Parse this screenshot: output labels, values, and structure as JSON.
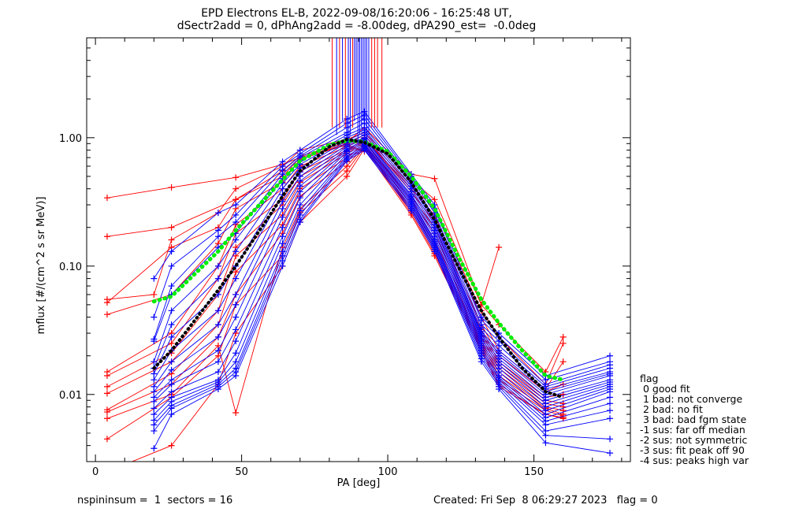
{
  "title": "EPD Electrons EL-B, 2022-09-08/16:20:06 - 16:25:48 UT,",
  "subtitle": "dSectr2add = 0, dPhAng2add = -8.00deg, dPA290_est=  -0.0deg",
  "footer": {
    "left": "nspininsum =  1  sectors = 16",
    "right": "Created: Fri Sep  8 06:29:27 2023   flag = 0"
  },
  "legend": {
    "title": "flag",
    "items": [
      " 0 good fit",
      " 1 bad: not converge",
      " 2 bad: no fit",
      " 3 bad: bad fgm state",
      "-1 sus: far off median",
      "-2 sus: not symmetric",
      "-3 sus: fit peak off 90",
      "-4 sus: peaks high var"
    ]
  },
  "colors": {
    "red": "#ff0000",
    "blue": "#0000ff",
    "green": "#00ee00",
    "black": "#000000"
  },
  "chart_data": {
    "type": "line",
    "xlabel": "PA [deg]",
    "ylabel": "mflux [#/(cm^2 s sr MeV)]",
    "xlim": [
      -3,
      183
    ],
    "ylim": [
      0.003,
      6.0
    ],
    "yscale": "log",
    "xticks": [
      0,
      50,
      100,
      150
    ],
    "yticks": [
      0.01,
      0.1,
      1.0
    ],
    "ytick_labels": [
      "0.01",
      "0.10",
      "1.00"
    ],
    "pa": [
      4,
      20,
      26,
      42,
      48,
      64,
      70,
      86,
      92,
      108,
      116,
      132,
      138,
      154,
      160,
      176
    ],
    "median_fit": {
      "color": "green",
      "x": [
        20,
        26,
        42,
        48,
        64,
        70,
        80,
        86,
        92,
        100,
        108,
        116,
        124,
        132,
        138,
        146,
        154,
        160
      ],
      "y": [
        0.053,
        0.058,
        0.13,
        0.19,
        0.47,
        0.66,
        0.88,
        0.95,
        0.93,
        0.78,
        0.5,
        0.28,
        0.12,
        0.055,
        0.036,
        0.022,
        0.014,
        0.013
      ]
    },
    "median_data": {
      "color": "black",
      "x": [
        20,
        26,
        42,
        48,
        64,
        70,
        80,
        86,
        92,
        100,
        108,
        116,
        124,
        132,
        138,
        146,
        154,
        160
      ],
      "y": [
        0.016,
        0.022,
        0.065,
        0.1,
        0.35,
        0.55,
        0.85,
        0.97,
        0.92,
        0.75,
        0.45,
        0.23,
        0.1,
        0.045,
        0.028,
        0.016,
        0.0105,
        0.0095
      ]
    },
    "series": [
      {
        "color": "red",
        "values": [
          0.34,
          null,
          0.41,
          null,
          0.49,
          0.62,
          0.7,
          0.88,
          0.78,
          null,
          null,
          null,
          null,
          null,
          null,
          null
        ]
      },
      {
        "color": "red",
        "values": [
          0.17,
          null,
          0.2,
          null,
          0.33,
          0.55,
          0.72,
          0.92,
          1.2,
          0.52,
          0.48,
          0.05,
          0.14,
          null,
          null,
          null
        ]
      },
      {
        "color": "red",
        "values": [
          0.055,
          0.06,
          0.16,
          0.26,
          0.4,
          0.6,
          0.8,
          0.97,
          1.1,
          0.47,
          0.33,
          0.05,
          0.035,
          0.015,
          0.028,
          null
        ]
      },
      {
        "color": "red",
        "values": [
          0.052,
          null,
          0.14,
          0.2,
          0.33,
          0.5,
          0.7,
          0.9,
          1.05,
          0.42,
          0.28,
          0.045,
          0.028,
          0.012,
          0.025,
          null
        ]
      },
      {
        "color": "red",
        "values": [
          0.042,
          null,
          0.06,
          0.15,
          0.28,
          0.45,
          0.68,
          0.88,
          1.0,
          0.4,
          0.25,
          0.04,
          0.022,
          0.011,
          0.018,
          null
        ]
      },
      {
        "color": "red",
        "values": [
          0.015,
          null,
          0.03,
          0.1,
          0.21,
          0.4,
          0.6,
          0.85,
          1.0,
          0.38,
          0.22,
          0.035,
          0.02,
          0.0105,
          0.012,
          null
        ]
      },
      {
        "color": "red",
        "values": [
          0.014,
          null,
          0.025,
          0.08,
          0.18,
          0.33,
          0.55,
          0.8,
          0.98,
          0.35,
          0.2,
          0.032,
          0.018,
          0.0095,
          0.01,
          null
        ]
      },
      {
        "color": "red",
        "values": [
          0.0115,
          null,
          0.021,
          0.06,
          0.14,
          0.3,
          0.5,
          0.78,
          0.95,
          0.33,
          0.18,
          0.03,
          0.017,
          0.009,
          0.0085,
          null
        ]
      },
      {
        "color": "red",
        "values": [
          0.0102,
          null,
          0.018,
          0.045,
          0.12,
          0.25,
          0.45,
          0.75,
          0.93,
          0.32,
          0.16,
          0.028,
          0.016,
          0.0085,
          0.008,
          null
        ]
      },
      {
        "color": "red",
        "values": [
          0.0076,
          null,
          0.0145,
          0.035,
          0.09,
          0.21,
          0.4,
          0.7,
          0.9,
          0.3,
          0.15,
          0.026,
          0.015,
          0.008,
          0.0075,
          null
        ]
      },
      {
        "color": "red",
        "values": [
          0.0073,
          null,
          0.012,
          0.028,
          0.06,
          0.18,
          0.35,
          0.65,
          0.88,
          0.28,
          0.14,
          0.025,
          0.014,
          0.0078,
          0.007,
          null
        ]
      },
      {
        "color": "red",
        "values": [
          0.0065,
          null,
          0.01,
          0.024,
          0.0072,
          0.14,
          0.28,
          0.6,
          0.86,
          0.27,
          0.13,
          0.024,
          0.013,
          0.0075,
          0.0068,
          null
        ]
      },
      {
        "color": "red",
        "values": [
          0.0045,
          null,
          0.0095,
          0.02,
          0.05,
          0.12,
          0.26,
          0.55,
          0.85,
          0.26,
          0.125,
          0.023,
          0.012,
          0.007,
          0.0066,
          null
        ]
      },
      {
        "color": "red",
        "values": [
          0.0025,
          null,
          0.004,
          0.012,
          0.03,
          0.1,
          0.22,
          0.5,
          0.82,
          0.25,
          0.12,
          0.022,
          0.0115,
          0.007,
          0.0065,
          null
        ]
      },
      {
        "color": "blue",
        "values": [
          null,
          0.08,
          0.13,
          0.26,
          0.3,
          0.65,
          0.8,
          1.4,
          1.6,
          0.52,
          0.3,
          0.04,
          0.03,
          0.014,
          null,
          0.02
        ]
      },
      {
        "color": "blue",
        "values": [
          null,
          0.04,
          0.1,
          0.19,
          0.25,
          0.6,
          0.75,
          1.3,
          1.5,
          0.5,
          0.28,
          0.038,
          0.028,
          0.013,
          null,
          0.018
        ]
      },
      {
        "color": "blue",
        "values": [
          null,
          0.027,
          0.07,
          0.17,
          0.22,
          0.56,
          0.72,
          1.2,
          1.4,
          0.48,
          0.26,
          0.035,
          0.026,
          0.012,
          null,
          0.017
        ]
      },
      {
        "color": "blue",
        "values": [
          null,
          0.026,
          0.06,
          0.14,
          0.18,
          0.52,
          0.7,
          1.1,
          1.3,
          0.46,
          0.24,
          0.033,
          0.024,
          0.0115,
          null,
          0.016
        ]
      },
      {
        "color": "blue",
        "values": [
          null,
          0.018,
          0.045,
          0.1,
          0.16,
          0.48,
          0.66,
          1.05,
          1.2,
          0.44,
          0.23,
          0.031,
          0.022,
          0.011,
          null,
          0.015
        ]
      },
      {
        "color": "blue",
        "values": [
          null,
          0.016,
          0.035,
          0.08,
          0.13,
          0.44,
          0.62,
          1.0,
          1.15,
          0.42,
          0.22,
          0.03,
          0.021,
          0.0105,
          null,
          0.0145
        ]
      },
      {
        "color": "blue",
        "values": [
          null,
          0.0145,
          0.028,
          0.06,
          0.1,
          0.4,
          0.58,
          0.95,
          1.1,
          0.4,
          0.21,
          0.029,
          0.02,
          0.01,
          null,
          0.014
        ]
      },
      {
        "color": "blue",
        "values": [
          null,
          0.013,
          0.022,
          0.045,
          0.08,
          0.36,
          0.54,
          0.92,
          1.05,
          0.38,
          0.2,
          0.028,
          0.019,
          0.0095,
          null,
          0.013
        ]
      },
      {
        "color": "blue",
        "values": [
          null,
          0.0115,
          0.018,
          0.035,
          0.06,
          0.32,
          0.5,
          0.88,
          1.0,
          0.36,
          0.19,
          0.027,
          0.018,
          0.009,
          null,
          0.0125
        ]
      },
      {
        "color": "blue",
        "values": [
          null,
          0.0105,
          0.0155,
          0.028,
          0.05,
          0.28,
          0.46,
          0.85,
          0.98,
          0.35,
          0.18,
          0.026,
          0.017,
          0.0085,
          null,
          0.012
        ]
      },
      {
        "color": "blue",
        "values": [
          null,
          0.0095,
          0.013,
          0.022,
          0.04,
          0.24,
          0.42,
          0.82,
          0.95,
          0.34,
          0.17,
          0.025,
          0.016,
          0.008,
          null,
          0.0115
        ]
      },
      {
        "color": "blue",
        "values": [
          null,
          0.0088,
          0.012,
          0.018,
          0.032,
          0.2,
          0.38,
          0.8,
          0.93,
          0.33,
          0.16,
          0.024,
          0.015,
          0.0075,
          null,
          0.011
        ]
      },
      {
        "color": "blue",
        "values": [
          null,
          0.0078,
          0.0105,
          0.015,
          0.026,
          0.17,
          0.34,
          0.78,
          0.9,
          0.32,
          0.155,
          0.023,
          0.014,
          0.007,
          null,
          0.0105
        ]
      },
      {
        "color": "blue",
        "values": [
          null,
          0.007,
          0.0095,
          0.013,
          0.021,
          0.15,
          0.3,
          0.75,
          0.88,
          0.31,
          0.15,
          0.022,
          0.0135,
          0.0066,
          null,
          0.0095
        ]
      },
      {
        "color": "blue",
        "values": [
          null,
          0.0063,
          0.0088,
          0.0125,
          0.018,
          0.13,
          0.27,
          0.72,
          0.86,
          0.3,
          0.145,
          0.021,
          0.013,
          0.0062,
          null,
          0.0085
        ]
      },
      {
        "color": "blue",
        "values": [
          null,
          0.0058,
          0.0082,
          0.012,
          0.016,
          0.12,
          0.25,
          0.7,
          0.84,
          0.29,
          0.14,
          0.02,
          0.0125,
          0.0058,
          null,
          0.0075
        ]
      },
      {
        "color": "blue",
        "values": [
          null,
          0.0052,
          0.0078,
          0.0115,
          0.015,
          0.11,
          0.23,
          0.68,
          0.82,
          0.28,
          0.135,
          0.019,
          0.012,
          0.0052,
          null,
          0.0065
        ]
      },
      {
        "color": "blue",
        "values": [
          null,
          0.0038,
          0.007,
          0.011,
          0.014,
          0.1,
          0.22,
          0.66,
          0.8,
          0.27,
          0.13,
          0.018,
          0.0115,
          0.0048,
          null,
          0.0045
        ]
      },
      {
        "color": "blue",
        "values": [
          null,
          null,
          null,
          null,
          null,
          null,
          null,
          null,
          null,
          null,
          null,
          null,
          0.011,
          0.0042,
          null,
          0.0035
        ]
      }
    ]
  }
}
